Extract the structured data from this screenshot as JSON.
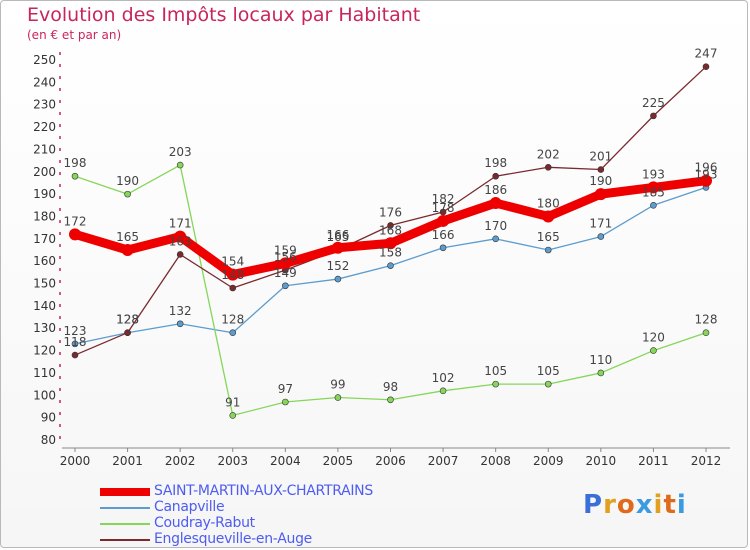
{
  "header": {
    "title": "Evolution des Impôts locaux par Habitant",
    "subtitle": "(en € et par an)"
  },
  "logo": {
    "text": "Proxiti",
    "letter_colors": [
      "#3a6fd8",
      "#e2a020",
      "#e06a1c",
      "#3a9be0",
      "#e2a020",
      "#e06a1c",
      "#3a9be0"
    ]
  },
  "chart_data": {
    "type": "line",
    "title": "Evolution des Impôts locaux par Habitant",
    "subtitle": "(en € et par an)",
    "xlabel": "",
    "ylabel": "",
    "x": [
      "2000",
      "2001",
      "2002",
      "2003",
      "2004",
      "2005",
      "2006",
      "2007",
      "2008",
      "2009",
      "2010",
      "2011",
      "2012"
    ],
    "ylim": [
      80,
      250
    ],
    "yticks": [
      80,
      90,
      100,
      110,
      120,
      130,
      140,
      150,
      160,
      170,
      180,
      190,
      200,
      210,
      220,
      230,
      240,
      250
    ],
    "grid": false,
    "legend_position": "bottom-left",
    "series": [
      {
        "name": "SAINT-MARTIN-AUX-CHARTRAINS",
        "color": "#ee0000",
        "values": [
          172,
          165,
          171,
          154,
          159,
          166,
          168,
          178,
          186,
          180,
          190,
          193,
          196
        ],
        "emphasis": true
      },
      {
        "name": "Canapville",
        "color": "#5d9ccd",
        "values": [
          123,
          128,
          132,
          128,
          149,
          152,
          158,
          166,
          170,
          165,
          171,
          185,
          193
        ]
      },
      {
        "name": "Coudray-Rabut",
        "color": "#86d65a",
        "values": [
          198,
          190,
          203,
          91,
          97,
          99,
          98,
          102,
          105,
          105,
          110,
          120,
          128
        ]
      },
      {
        "name": "Englesqueville-en-Auge",
        "color": "#7a2a2e",
        "values": [
          118,
          128,
          163,
          148,
          156,
          165,
          176,
          182,
          198,
          202,
          201,
          225,
          247
        ]
      }
    ]
  }
}
